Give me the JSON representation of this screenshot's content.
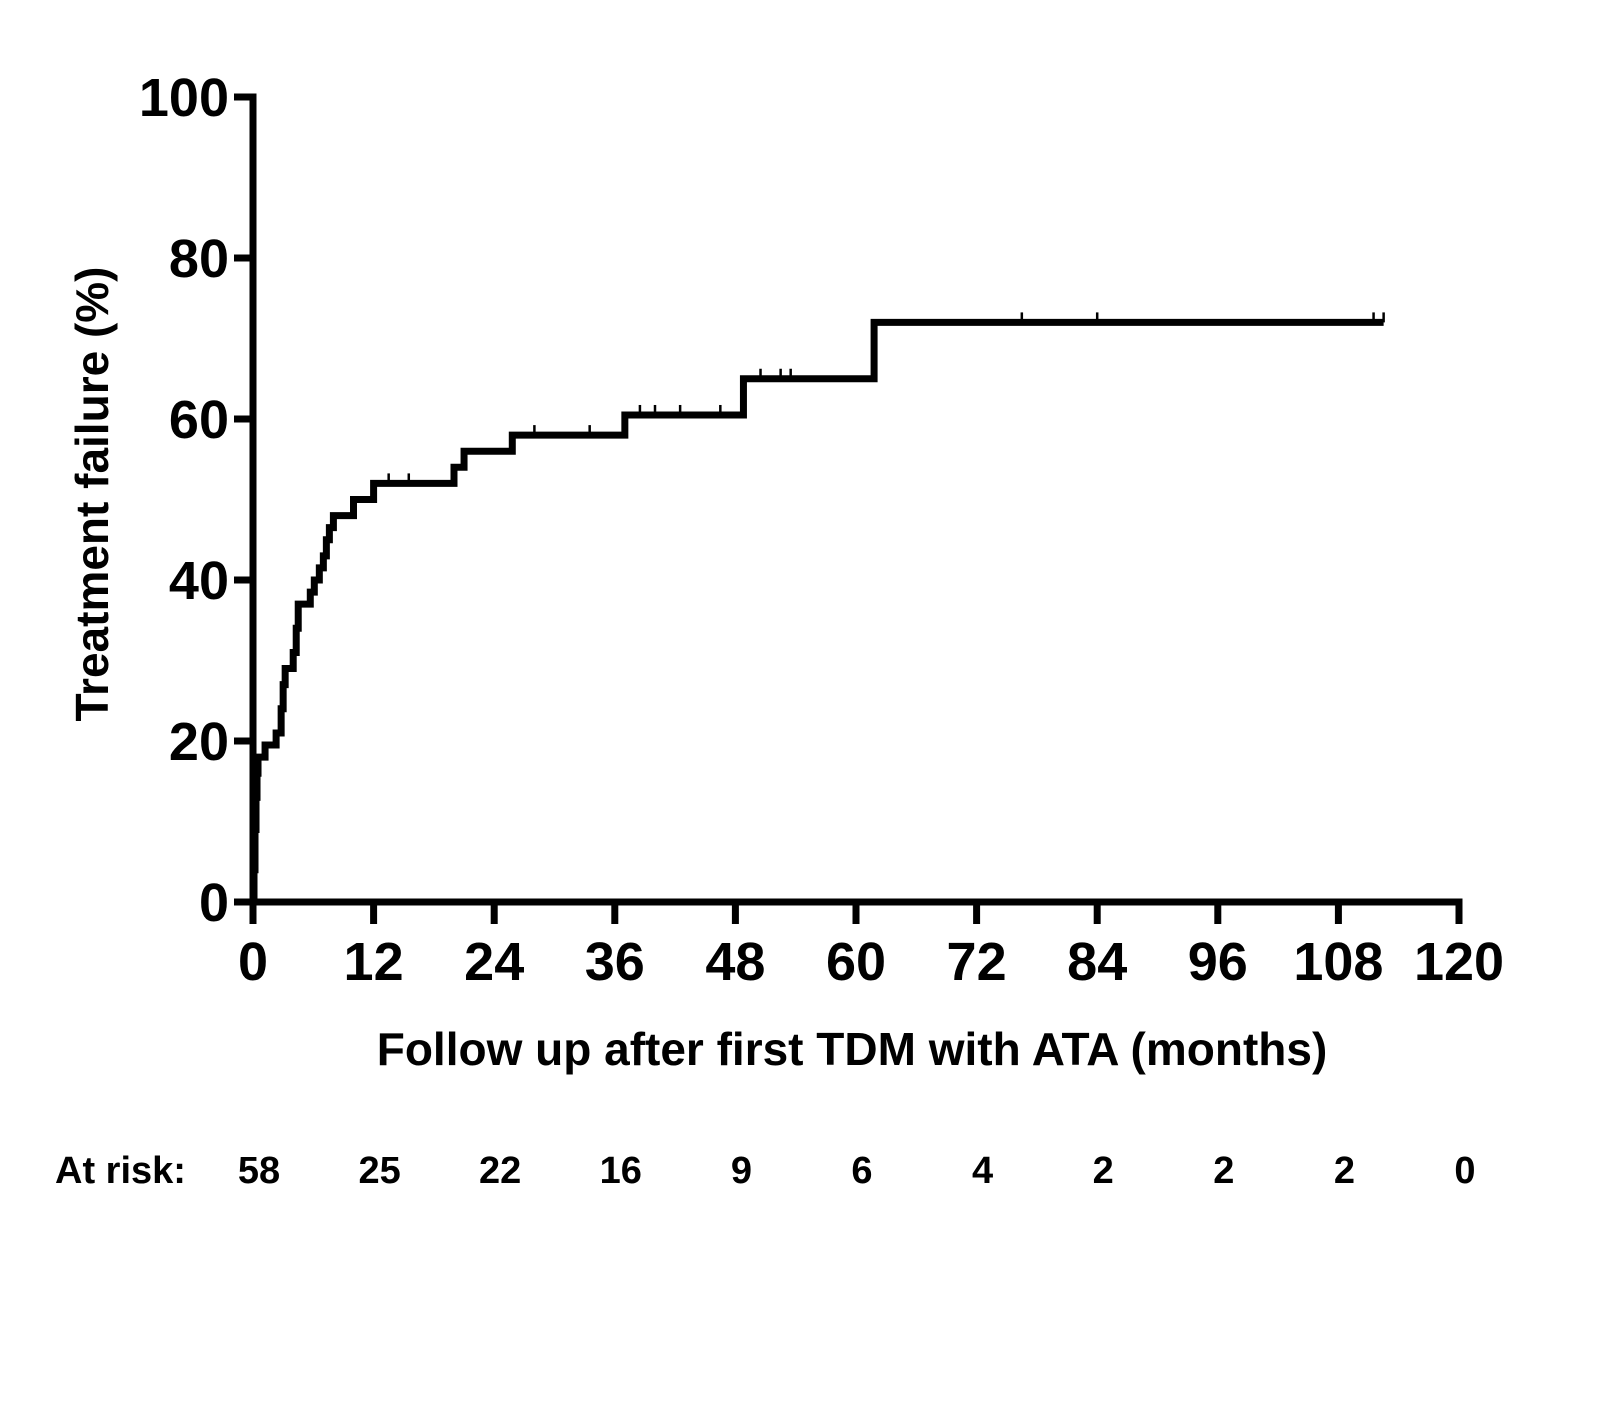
{
  "chart_data": {
    "type": "line",
    "subtype": "kaplan-meier-cumulative-incidence",
    "xlabel": "Follow up after first TDM with ATA (months)",
    "ylabel": "Treatment failure (%)",
    "xlim": [
      0,
      120
    ],
    "ylim": [
      0,
      100
    ],
    "xticks": [
      0,
      12,
      24,
      36,
      48,
      60,
      72,
      84,
      96,
      108,
      120
    ],
    "yticks": [
      0,
      20,
      40,
      60,
      80,
      100
    ],
    "grid": false,
    "series": [
      {
        "color": "#000000",
        "steps": [
          {
            "x": 0,
            "y": 0
          },
          {
            "x": 0.1,
            "y": 4
          },
          {
            "x": 0.2,
            "y": 9
          },
          {
            "x": 0.3,
            "y": 13
          },
          {
            "x": 0.4,
            "y": 16
          },
          {
            "x": 0.5,
            "y": 18
          },
          {
            "x": 1.2,
            "y": 19.5
          },
          {
            "x": 2.3,
            "y": 21
          },
          {
            "x": 2.8,
            "y": 24
          },
          {
            "x": 3.0,
            "y": 27
          },
          {
            "x": 3.2,
            "y": 29
          },
          {
            "x": 4.0,
            "y": 31
          },
          {
            "x": 4.3,
            "y": 34
          },
          {
            "x": 4.5,
            "y": 37
          },
          {
            "x": 5.7,
            "y": 38.5
          },
          {
            "x": 6.1,
            "y": 40
          },
          {
            "x": 6.6,
            "y": 41.5
          },
          {
            "x": 7.0,
            "y": 43
          },
          {
            "x": 7.3,
            "y": 45
          },
          {
            "x": 7.6,
            "y": 46.5
          },
          {
            "x": 8.0,
            "y": 48
          },
          {
            "x": 10.0,
            "y": 50
          },
          {
            "x": 12.0,
            "y": 52
          },
          {
            "x": 20.0,
            "y": 54
          },
          {
            "x": 21.0,
            "y": 56
          },
          {
            "x": 25.8,
            "y": 58
          },
          {
            "x": 37.0,
            "y": 60.5
          },
          {
            "x": 48.8,
            "y": 65
          },
          {
            "x": 61.8,
            "y": 72
          },
          {
            "x": 112.5,
            "y": 72
          }
        ],
        "censored_x": [
          13.5,
          15.5,
          28.0,
          33.5,
          38.5,
          40.0,
          42.5,
          46.5,
          50.5,
          52.5,
          53.5,
          76.5,
          84.0,
          111.5,
          112.5
        ]
      }
    ]
  },
  "at_risk": {
    "label": "At risk:",
    "times": [
      0,
      12,
      24,
      36,
      48,
      60,
      72,
      84,
      96,
      108,
      120
    ],
    "counts": [
      "58",
      "25",
      "22",
      "16",
      "9",
      "6",
      "4",
      "2",
      "2",
      "2",
      "0"
    ]
  }
}
